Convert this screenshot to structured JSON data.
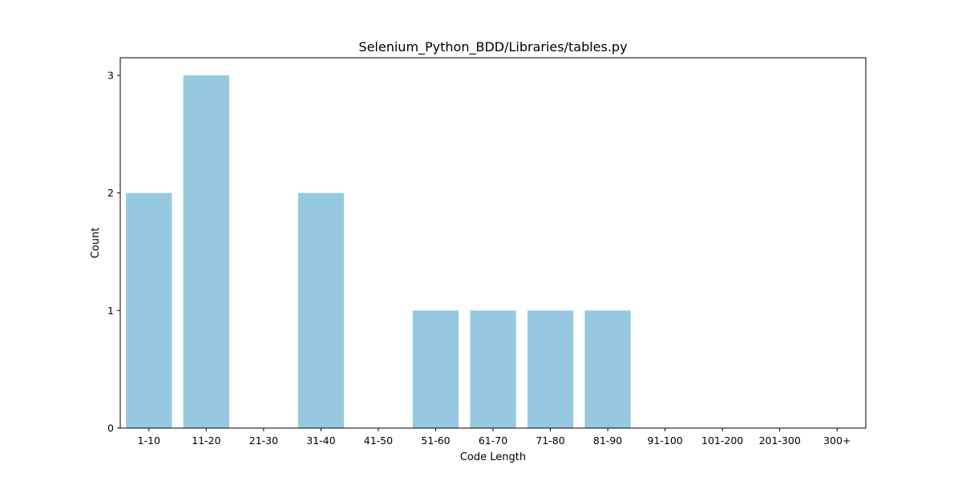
{
  "chart_data": {
    "type": "bar",
    "title": "Selenium_Python_BDD/Libraries/tables.py",
    "xlabel": "Code Length",
    "ylabel": "Count",
    "categories": [
      "1-10",
      "11-20",
      "21-30",
      "31-40",
      "41-50",
      "51-60",
      "61-70",
      "71-80",
      "81-90",
      "91-100",
      "101-200",
      "201-300",
      "300+"
    ],
    "values": [
      2,
      3,
      0,
      2,
      0,
      1,
      1,
      1,
      1,
      0,
      0,
      0,
      0
    ],
    "ylim": [
      0,
      3.15
    ],
    "yticks": [
      "0",
      "1",
      "2",
      "3"
    ],
    "bar_color": "#96c9df",
    "grid": false,
    "legend": "none"
  }
}
